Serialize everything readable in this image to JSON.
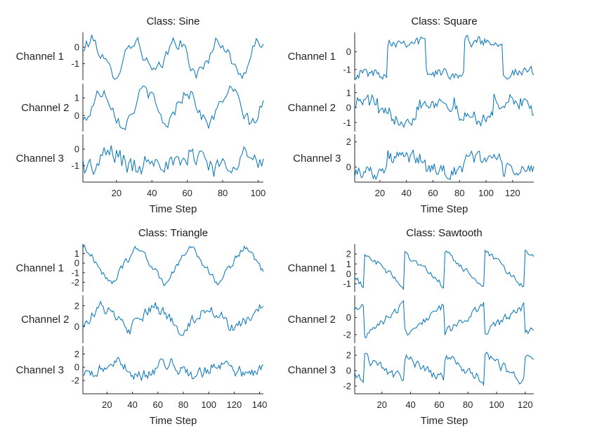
{
  "figure": {
    "background": "#ffffff",
    "line_color": "#0072bd",
    "axis_color": "#262626"
  },
  "chart_data": [
    {
      "type": "line",
      "title": "Class: Sine",
      "xlabel": "Time Step",
      "xlim": [
        1,
        103
      ],
      "xticks": [
        20,
        40,
        60,
        80,
        100
      ],
      "channels": [
        {
          "name": "Channel 1",
          "ylim": [
            -2.0,
            0.9
          ],
          "yticks": [
            -1,
            0
          ],
          "shape": "sine",
          "period": 24,
          "phase": 0,
          "amplitude": 1.0,
          "offset": -0.6,
          "noise": 0.45
        },
        {
          "name": "Channel 2",
          "ylim": [
            -0.9,
            1.8
          ],
          "yticks": [
            0,
            1
          ],
          "shape": "sine",
          "period": 24,
          "phase": 6,
          "amplitude": 0.9,
          "offset": 0.5,
          "noise": 0.4
        },
        {
          "name": "Channel 3",
          "ylim": [
            -2.0,
            0.9
          ],
          "yticks": [
            -1,
            0
          ],
          "shape": "sine",
          "period": 24,
          "phase": 12,
          "amplitude": 0.5,
          "offset": -0.7,
          "noise": 0.75
        }
      ]
    },
    {
      "type": "line",
      "title": "Class: Square",
      "xlabel": "Time Step",
      "xlim": [
        1,
        136
      ],
      "xticks": [
        20,
        40,
        60,
        80,
        100,
        120
      ],
      "channels": [
        {
          "name": "Channel 1",
          "ylim": [
            -1.6,
            1.1
          ],
          "yticks": [
            -1,
            0
          ],
          "shape": "square",
          "period": 58,
          "phase": -32,
          "amplitude": 0.9,
          "offset": -0.3,
          "noise": 0.3
        },
        {
          "name": "Channel 2",
          "ylim": [
            -1.6,
            1.6
          ],
          "yticks": [
            -1,
            0,
            1
          ],
          "shape": "square",
          "period": 58,
          "phase": -10,
          "amplitude": 0.5,
          "offset": -0.1,
          "noise": 0.55
        },
        {
          "name": "Channel 3",
          "ylim": [
            -1.2,
            2.6
          ],
          "yticks": [
            0,
            2
          ],
          "shape": "square",
          "period": 58,
          "phase": -32,
          "amplitude": 0.5,
          "offset": 0.2,
          "noise": 0.6
        }
      ]
    },
    {
      "type": "line",
      "title": "Class: Triangle",
      "xlabel": "Time Step",
      "xlim": [
        1,
        143
      ],
      "xticks": [
        20,
        40,
        60,
        80,
        100,
        120,
        140
      ],
      "channels": [
        {
          "name": "Channel 1",
          "ylim": [
            -3.0,
            2.0
          ],
          "yticks": [
            -2,
            -1,
            0,
            1
          ],
          "shape": "triangle",
          "period": 42,
          "phase": -19,
          "amplitude": 2.0,
          "offset": -0.2,
          "noise": 0.35
        },
        {
          "name": "Channel 2",
          "ylim": [
            -1.6,
            3.0
          ],
          "yticks": [
            0,
            2
          ],
          "shape": "triangle",
          "period": 42,
          "phase": -5,
          "amplitude": 1.2,
          "offset": 0.8,
          "noise": 0.55
        },
        {
          "name": "Channel 3",
          "ylim": [
            -4.0,
            3.2
          ],
          "yticks": [
            -2,
            0,
            2
          ],
          "shape": "triangle",
          "period": 42,
          "phase": 5,
          "amplitude": 1.1,
          "offset": -0.3,
          "noise": 0.9
        }
      ]
    },
    {
      "type": "line",
      "title": "Class: Sawtooth",
      "xlabel": "Time Step",
      "xlim": [
        1,
        126
      ],
      "xticks": [
        20,
        40,
        60,
        80,
        100,
        120
      ],
      "channels": [
        {
          "name": "Channel 1",
          "ylim": [
            -1.8,
            3.0
          ],
          "yticks": [
            -1,
            0,
            1,
            2
          ],
          "shape": "sawtooth",
          "period": 28,
          "phase": -20,
          "amplitude": 1.8,
          "offset": 0.4,
          "noise": 0.35
        },
        {
          "name": "Channel 2",
          "ylim": [
            -3.0,
            2.6
          ],
          "yticks": [
            -2,
            0
          ],
          "shape": "sawtooth_up",
          "period": 28,
          "phase": -20,
          "amplitude": 1.7,
          "offset": -0.2,
          "noise": 0.5
        },
        {
          "name": "Channel 3",
          "ylim": [
            -3.0,
            3.2
          ],
          "yticks": [
            -2,
            0,
            2
          ],
          "shape": "sawtooth",
          "period": 28,
          "phase": -20,
          "amplitude": 1.6,
          "offset": 0.2,
          "noise": 0.65
        }
      ]
    }
  ]
}
